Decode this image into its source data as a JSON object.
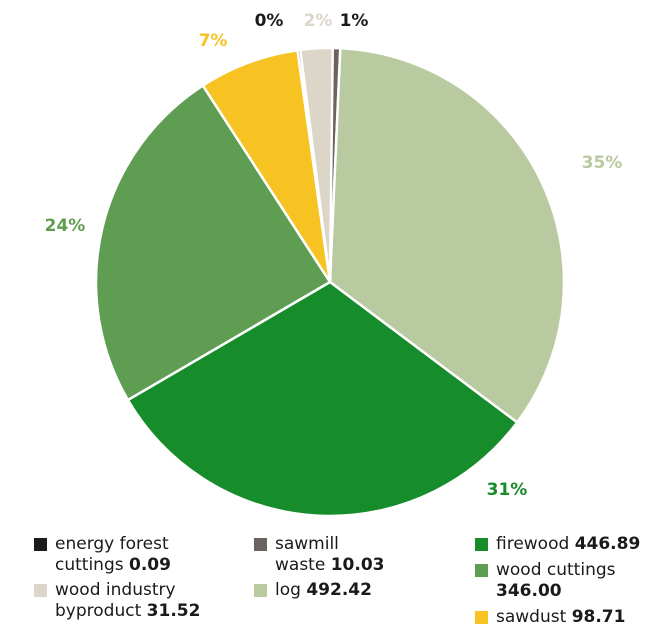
{
  "chart_data": {
    "type": "pie",
    "title": "",
    "unit": "",
    "slices": [
      {
        "name": "sawmill waste",
        "value": 10.03,
        "pct_label": "1%",
        "color": "#6b6361"
      },
      {
        "name": "log",
        "value": 492.42,
        "pct_label": "35%",
        "color": "#b9c9a0"
      },
      {
        "name": "firewood",
        "value": 446.89,
        "pct_label": "31%",
        "color": "#178c2b"
      },
      {
        "name": "wood cuttings",
        "value": 346.0,
        "pct_label": "24%",
        "color": "#5f9e52"
      },
      {
        "name": "sawdust",
        "value": 98.71,
        "pct_label": "7%",
        "color": "#f6c322"
      },
      {
        "name": "energy forest cuttings",
        "value": 0.09,
        "pct_label": "0%",
        "color": "#1b1b1b"
      },
      {
        "name": "wood industry byproduct",
        "value": 31.52,
        "pct_label": "2%",
        "color": "#dcd6c9"
      }
    ]
  },
  "legend": {
    "energy_forest_cuttings": {
      "line1": "energy forest",
      "line2": "cuttings",
      "value": "0.09"
    },
    "wood_industry_byproduct": {
      "line1": "wood industry",
      "line2": "byproduct",
      "value": "31.52"
    },
    "sawmill_waste": {
      "line1": "sawmill",
      "line2": "waste",
      "value": "10.03"
    },
    "log": {
      "label": "log",
      "value": "492.42"
    },
    "firewood": {
      "label": "firewood",
      "value": "446.89"
    },
    "wood_cuttings": {
      "line1": "wood cuttings",
      "value": "346.00"
    },
    "sawdust": {
      "label": "sawdust",
      "value": "98.71"
    }
  }
}
